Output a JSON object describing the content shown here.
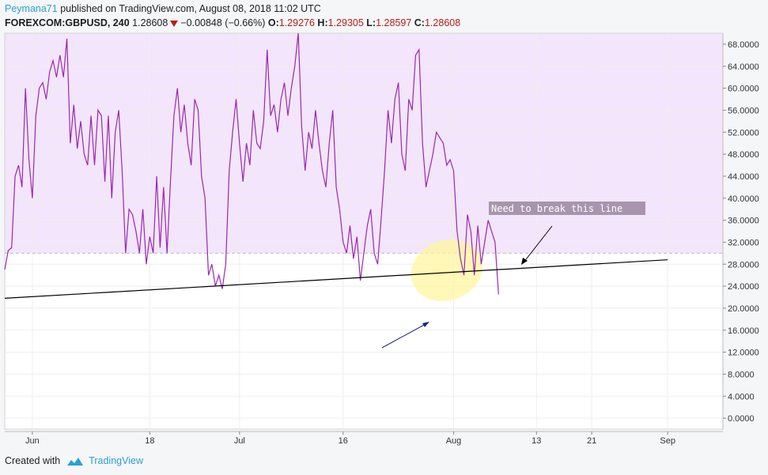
{
  "header": {
    "user": "Peymana71",
    "published": "published on TradingView.com, August 08, 2018 11:02 UTC",
    "symbol": "FOREXCOM:GBPUSD, 240",
    "last": "1.28608",
    "change": "−0.00848 (−0.66%)",
    "o_label": "O:",
    "o_value": "1.29276",
    "h_label": "H:",
    "h_value": "1.29305",
    "l_label": "L:",
    "l_value": "1.28597",
    "c_label": "C:",
    "c_value": "1.28608"
  },
  "footer": {
    "created": "Created with",
    "brand": "TradingView"
  },
  "annotation": {
    "text": "Need to break this line"
  },
  "colors": {
    "line": "#9c27b0",
    "zone_fill": "#f3e5fb",
    "trendline": "#000000",
    "highlight": "#fff59d",
    "blue_arrow": "#1a237e",
    "red": "#b71c1c",
    "brand": "#2a9fd6"
  },
  "chart_data": {
    "type": "line",
    "indicator_level": 30,
    "ylim": [
      -2,
      70
    ],
    "yticks": [
      {
        "value": 0,
        "label": "0.0000"
      },
      {
        "value": 4,
        "label": "4.0000"
      },
      {
        "value": 8,
        "label": "8.0000"
      },
      {
        "value": 12,
        "label": "12.0000"
      },
      {
        "value": 16,
        "label": "16.0000"
      },
      {
        "value": 20,
        "label": "20.0000"
      },
      {
        "value": 24,
        "label": "24.0000"
      },
      {
        "value": 28,
        "label": "28.0000"
      },
      {
        "value": 32,
        "label": "32.0000"
      },
      {
        "value": 36,
        "label": "36.0000"
      },
      {
        "value": 40,
        "label": "40.0000"
      },
      {
        "value": 44,
        "label": "44.0000"
      },
      {
        "value": 48,
        "label": "48.0000"
      },
      {
        "value": 52,
        "label": "52.0000"
      },
      {
        "value": 56,
        "label": "56.0000"
      },
      {
        "value": 60,
        "label": "60.0000"
      },
      {
        "value": 64,
        "label": "64.0000"
      },
      {
        "value": 68,
        "label": "68.0000"
      }
    ],
    "xlim": [
      "2018-05-28",
      "2018-09-09"
    ],
    "xticks": [
      {
        "date": "2018-06-01",
        "label": "Jun"
      },
      {
        "date": "2018-06-18",
        "label": "18"
      },
      {
        "date": "2018-07-01",
        "label": "Jul"
      },
      {
        "date": "2018-07-16",
        "label": "16"
      },
      {
        "date": "2018-08-01",
        "label": "Aug"
      },
      {
        "date": "2018-08-13",
        "label": "13"
      },
      {
        "date": "2018-08-21",
        "label": "21"
      },
      {
        "date": "2018-09-01",
        "label": "Sep"
      }
    ],
    "trendline": {
      "start": {
        "date": "2018-05-28",
        "value": 21.8
      },
      "end": {
        "date": "2018-09-01",
        "value": 28.8
      }
    },
    "series": [
      {
        "points": [
          [
            "2018-05-28",
            27
          ],
          [
            "2018-05-28T12",
            30.5
          ],
          [
            "2018-05-29",
            31
          ],
          [
            "2018-05-29T12",
            44
          ],
          [
            "2018-05-30",
            46
          ],
          [
            "2018-05-30T12",
            42
          ],
          [
            "2018-05-31",
            60
          ],
          [
            "2018-05-31T12",
            47
          ],
          [
            "2018-06-01",
            40
          ],
          [
            "2018-06-01T12",
            55
          ],
          [
            "2018-06-02",
            60
          ],
          [
            "2018-06-02T12",
            61
          ],
          [
            "2018-06-03",
            58
          ],
          [
            "2018-06-03T12",
            63
          ],
          [
            "2018-06-04",
            65
          ],
          [
            "2018-06-04T12",
            62
          ],
          [
            "2018-06-05",
            66
          ],
          [
            "2018-06-05T12",
            62
          ],
          [
            "2018-06-06",
            69
          ],
          [
            "2018-06-06T12",
            50
          ],
          [
            "2018-06-07",
            57
          ],
          [
            "2018-06-07T12",
            49
          ],
          [
            "2018-06-08",
            54
          ],
          [
            "2018-06-08T12",
            48
          ],
          [
            "2018-06-09",
            46
          ],
          [
            "2018-06-09T12",
            55
          ],
          [
            "2018-06-10",
            46
          ],
          [
            "2018-06-10T12",
            56
          ],
          [
            "2018-06-11",
            55
          ],
          [
            "2018-06-11T12",
            43
          ],
          [
            "2018-06-12",
            55
          ],
          [
            "2018-06-12T12",
            40
          ],
          [
            "2018-06-13",
            52
          ],
          [
            "2018-06-13T12",
            56
          ],
          [
            "2018-06-14",
            45
          ],
          [
            "2018-06-14T12",
            30
          ],
          [
            "2018-06-15",
            38
          ],
          [
            "2018-06-15T12",
            37
          ],
          [
            "2018-06-16",
            34
          ],
          [
            "2018-06-16T12",
            30
          ],
          [
            "2018-06-17",
            38
          ],
          [
            "2018-06-17T12",
            28
          ],
          [
            "2018-06-18",
            33
          ],
          [
            "2018-06-18T12",
            30
          ],
          [
            "2018-06-19",
            44
          ],
          [
            "2018-06-19T12",
            31
          ],
          [
            "2018-06-20",
            42
          ],
          [
            "2018-06-20T12",
            30
          ],
          [
            "2018-06-21",
            43
          ],
          [
            "2018-06-21T12",
            55
          ],
          [
            "2018-06-22",
            60
          ],
          [
            "2018-06-22T12",
            52
          ],
          [
            "2018-06-23",
            57
          ],
          [
            "2018-06-23T12",
            50
          ],
          [
            "2018-06-24",
            46
          ],
          [
            "2018-06-24T12",
            58
          ],
          [
            "2018-06-25",
            56
          ],
          [
            "2018-06-25T12",
            44
          ],
          [
            "2018-06-26",
            40
          ],
          [
            "2018-06-26T12",
            26
          ],
          [
            "2018-06-27",
            28
          ],
          [
            "2018-06-27T12",
            24
          ],
          [
            "2018-06-28",
            26
          ],
          [
            "2018-06-28T12",
            23.5
          ],
          [
            "2018-06-29",
            28
          ],
          [
            "2018-06-29T12",
            45
          ],
          [
            "2018-06-30",
            52
          ],
          [
            "2018-06-30T12",
            58
          ],
          [
            "2018-07-01",
            50
          ],
          [
            "2018-07-01T12",
            43
          ],
          [
            "2018-07-02",
            50
          ],
          [
            "2018-07-02T12",
            46
          ],
          [
            "2018-07-03",
            56
          ],
          [
            "2018-07-03T12",
            50
          ],
          [
            "2018-07-04",
            49
          ],
          [
            "2018-07-04T12",
            54
          ],
          [
            "2018-07-05",
            67
          ],
          [
            "2018-07-05T12",
            55
          ],
          [
            "2018-07-06",
            57
          ],
          [
            "2018-07-06T12",
            52
          ],
          [
            "2018-07-07",
            58
          ],
          [
            "2018-07-07T12",
            61
          ],
          [
            "2018-07-08",
            55
          ],
          [
            "2018-07-08T12",
            60
          ],
          [
            "2018-07-09",
            64
          ],
          [
            "2018-07-09T12",
            70
          ],
          [
            "2018-07-10",
            53
          ],
          [
            "2018-07-10T12",
            45
          ],
          [
            "2018-07-11",
            52
          ],
          [
            "2018-07-11T12",
            49
          ],
          [
            "2018-07-12",
            56
          ],
          [
            "2018-07-12T12",
            50
          ],
          [
            "2018-07-13",
            45
          ],
          [
            "2018-07-13T12",
            42
          ],
          [
            "2018-07-14",
            50
          ],
          [
            "2018-07-14T12",
            56
          ],
          [
            "2018-07-15",
            42
          ],
          [
            "2018-07-15T12",
            38
          ],
          [
            "2018-07-16",
            32
          ],
          [
            "2018-07-16T12",
            30
          ],
          [
            "2018-07-17",
            35
          ],
          [
            "2018-07-17T12",
            29
          ],
          [
            "2018-07-18",
            33
          ],
          [
            "2018-07-18T12",
            25
          ],
          [
            "2018-07-19",
            30
          ],
          [
            "2018-07-19T12",
            35
          ],
          [
            "2018-07-20",
            38
          ],
          [
            "2018-07-20T12",
            30
          ],
          [
            "2018-07-21",
            28
          ],
          [
            "2018-07-21T12",
            36
          ],
          [
            "2018-07-22",
            45
          ],
          [
            "2018-07-22T12",
            56
          ],
          [
            "2018-07-23",
            50
          ],
          [
            "2018-07-23T12",
            58
          ],
          [
            "2018-07-24",
            61
          ],
          [
            "2018-07-24T12",
            48
          ],
          [
            "2018-07-25",
            45
          ],
          [
            "2018-07-25T12",
            58
          ],
          [
            "2018-07-26",
            56
          ],
          [
            "2018-07-26T12",
            66
          ],
          [
            "2018-07-27",
            67
          ],
          [
            "2018-07-27T12",
            50
          ],
          [
            "2018-07-28",
            42
          ],
          [
            "2018-07-28T12",
            45
          ],
          [
            "2018-07-29",
            48
          ],
          [
            "2018-07-29T12",
            52
          ],
          [
            "2018-07-30",
            51
          ],
          [
            "2018-07-30T12",
            50
          ],
          [
            "2018-07-31",
            46
          ],
          [
            "2018-07-31T12",
            47
          ],
          [
            "2018-08-01",
            45
          ],
          [
            "2018-08-01T12",
            34
          ],
          [
            "2018-08-02",
            29
          ],
          [
            "2018-08-02T12",
            26
          ],
          [
            "2018-08-03",
            37
          ],
          [
            "2018-08-03T12",
            34
          ],
          [
            "2018-08-04",
            26
          ],
          [
            "2018-08-04T12",
            35
          ],
          [
            "2018-08-05",
            28
          ],
          [
            "2018-08-05T12",
            32
          ],
          [
            "2018-08-06",
            36
          ],
          [
            "2018-08-06T12",
            34
          ],
          [
            "2018-08-07",
            32
          ],
          [
            "2018-08-07T12",
            22.5
          ]
        ]
      }
    ]
  }
}
